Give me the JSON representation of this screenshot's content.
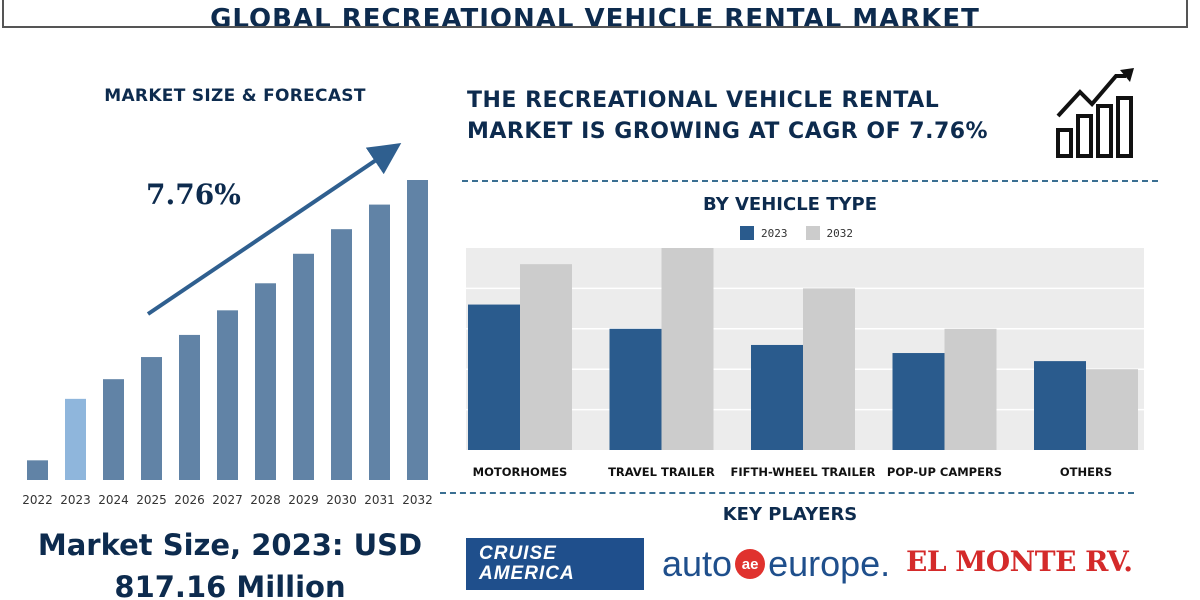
{
  "title": "GLOBAL RECREATIONAL VEHICLE RENTAL MARKET",
  "left_panel": {
    "heading": "MARKET SIZE & FORECAST",
    "cagr_label": "7.76%",
    "market_size_line1": "Market Size, 2023: USD",
    "market_size_line2": "817.16 Million"
  },
  "right_panel": {
    "heading_line1": "THE RECREATIONAL VEHICLE RENTAL",
    "heading_line2": "MARKET IS GROWING AT CAGR OF 7.76%",
    "segment_heading": "BY VEHICLE TYPE",
    "key_players_heading": "KEY PLAYERS"
  },
  "key_players": {
    "cruise_line1": "CRUISE",
    "cruise_line2": "AMERICA",
    "auto_left": "auto",
    "auto_mid": "ae",
    "auto_right": "europe.",
    "elmonte": "EL MONTE RV."
  },
  "colors": {
    "navy": "#0d2b4e",
    "bar_main": "#6183a6",
    "bar_highlight": "#8fb6dc",
    "series_2023": "#2a5b8d",
    "series_2032": "#cccccc",
    "plot_bg": "#ececec",
    "arrow": "#2f5f8f"
  },
  "icon": "growth-chart-icon",
  "chart_data": [
    {
      "type": "bar",
      "categories": [
        "2022",
        "2023",
        "2024",
        "2025",
        "2026",
        "2027",
        "2028",
        "2029",
        "2030",
        "2031",
        "2032"
      ],
      "values": [
        0.8,
        3.3,
        4.1,
        5.0,
        5.9,
        6.9,
        8.0,
        9.2,
        10.2,
        11.2,
        12.2
      ],
      "highlight_category": "2023",
      "annotation": "7.76%",
      "title": "MARKET SIZE & FORECAST",
      "xlabel": "",
      "ylabel": "",
      "grid": false
    },
    {
      "type": "bar",
      "title": "BY VEHICLE TYPE",
      "categories": [
        "MOTORHOMES",
        "TRAVEL TRAILER",
        "FIFTH-WHEEL TRAILER",
        "POP-UP CAMPERS",
        "OTHERS"
      ],
      "series": [
        {
          "name": "2023",
          "values": [
            36,
            30,
            26,
            24,
            22
          ]
        },
        {
          "name": "2032",
          "values": [
            46,
            50,
            40,
            30,
            20
          ]
        }
      ],
      "ylim": [
        0,
        50
      ],
      "grid": true,
      "legend": "top-center",
      "xlabel": "",
      "ylabel": ""
    }
  ]
}
